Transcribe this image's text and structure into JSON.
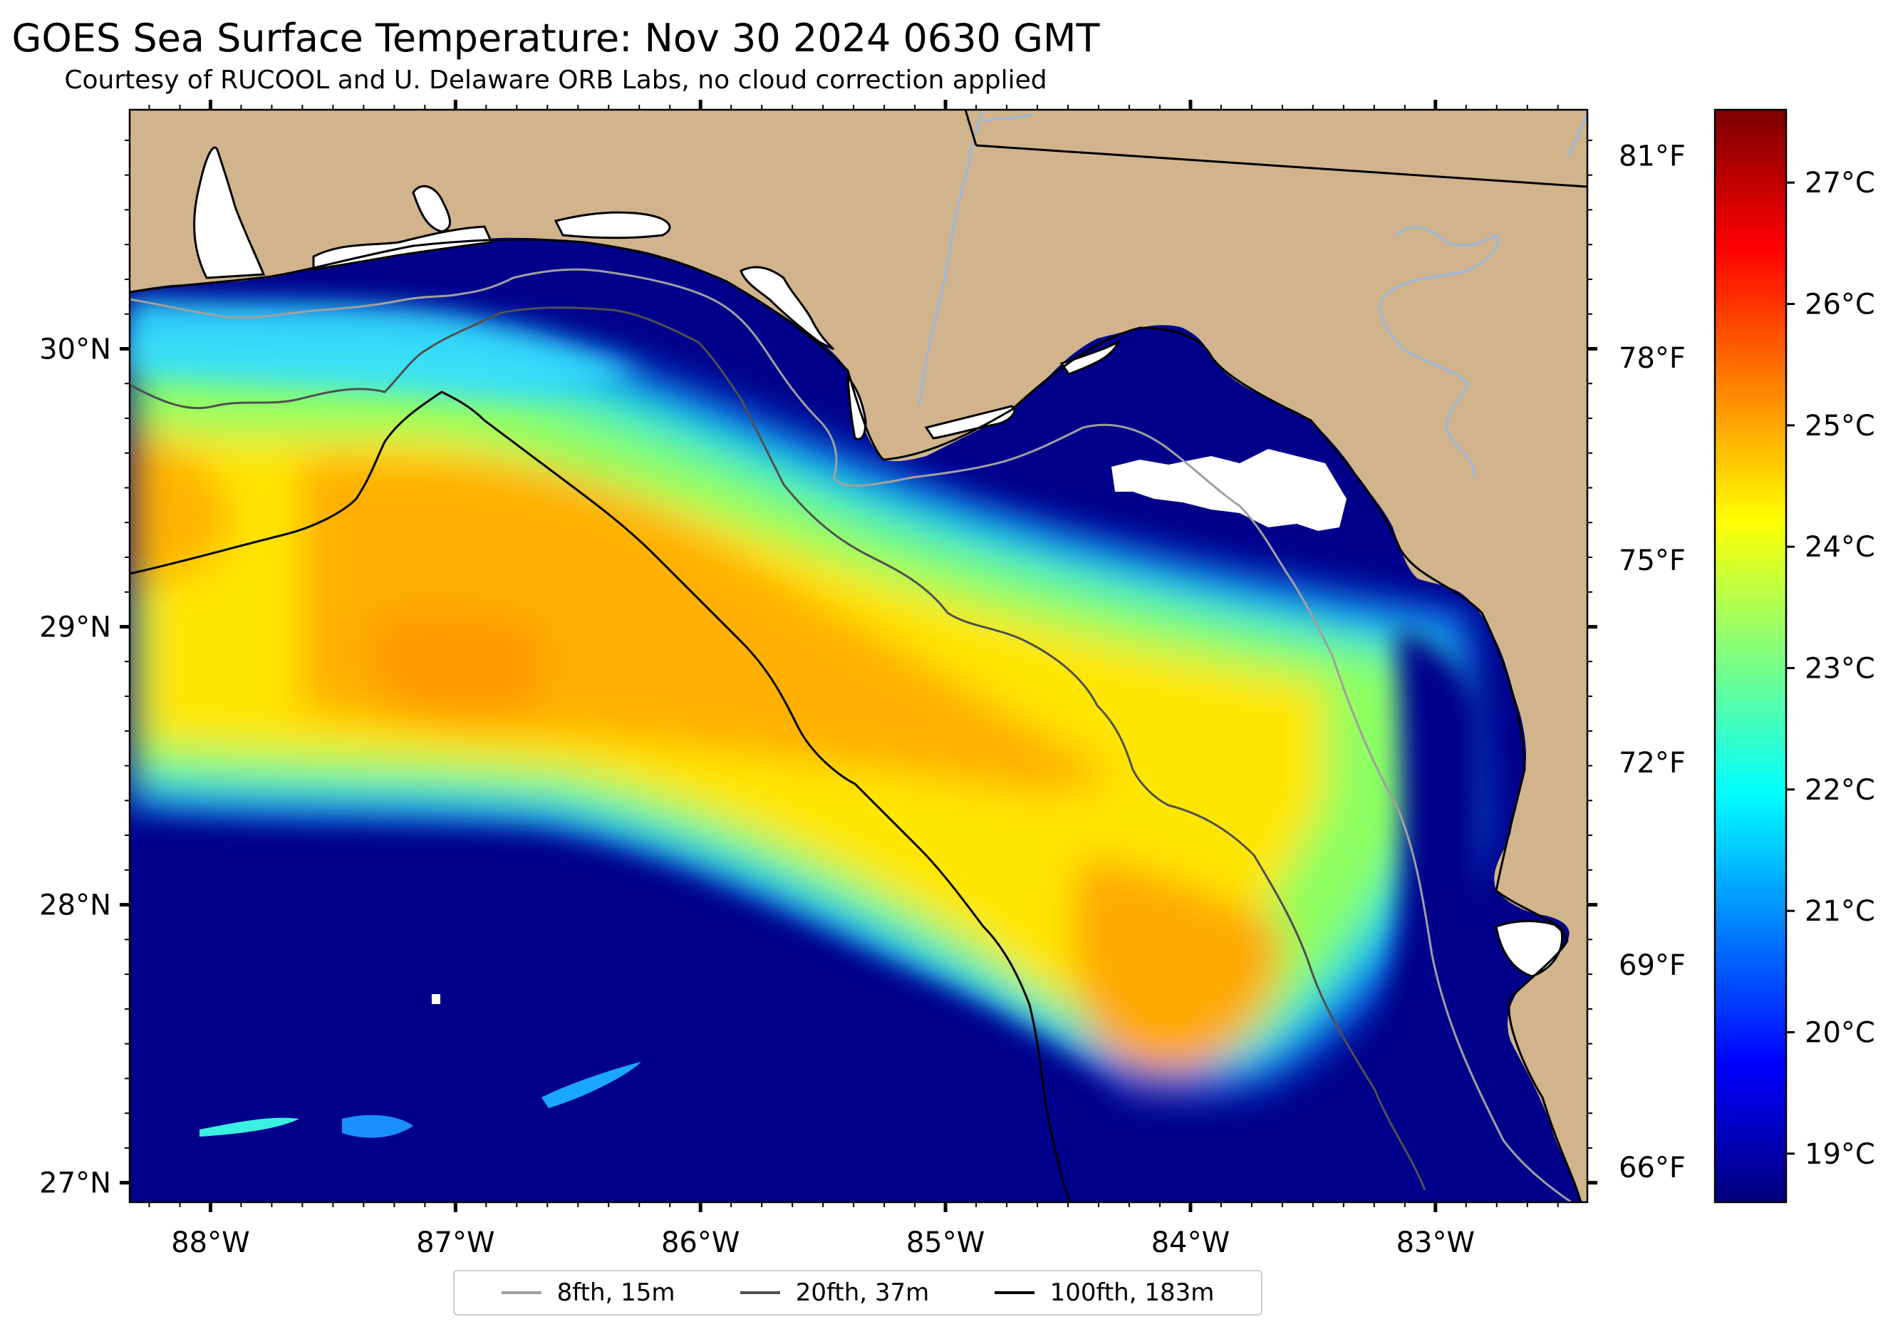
{
  "header": {
    "title": "GOES Sea Surface Temperature: Nov 30 2024 0630 GMT",
    "subtitle": "Courtesy of RUCOOL and U. Delaware ORB Labs, no cloud correction applied"
  },
  "map": {
    "lon_range": [
      -88.33,
      -82.38
    ],
    "lat_range": [
      26.93,
      30.86
    ],
    "lon_ticks": [
      {
        "lon": -88,
        "label": "88°W"
      },
      {
        "lon": -87,
        "label": "87°W"
      },
      {
        "lon": -86,
        "label": "86°W"
      },
      {
        "lon": -85,
        "label": "85°W"
      },
      {
        "lon": -84,
        "label": "84°W"
      },
      {
        "lon": -83,
        "label": "83°W"
      }
    ],
    "lat_ticks": [
      {
        "lat": 30,
        "label": "30°N"
      },
      {
        "lat": 29,
        "label": "29°N"
      },
      {
        "lat": 28,
        "label": "28°N"
      },
      {
        "lat": 27,
        "label": "27°N"
      }
    ],
    "fahrenheit_ticks": [
      {
        "degF": 81,
        "label": "81°F"
      },
      {
        "degF": 78,
        "label": "78°F"
      },
      {
        "degF": 75,
        "label": "75°F"
      },
      {
        "degF": 72,
        "label": "72°F"
      },
      {
        "degF": 69,
        "label": "69°F"
      },
      {
        "degF": 66,
        "label": "66°F"
      }
    ],
    "land_color": "#d2b48c",
    "cold_water_color": "#00008b",
    "cloud_color": "#ffffff"
  },
  "colorbar": {
    "vmin": 18.6,
    "vmax": 27.6,
    "colormap": "jet",
    "ticks": [
      {
        "degC": 19,
        "label": "19°C"
      },
      {
        "degC": 20,
        "label": "20°C"
      },
      {
        "degC": 21,
        "label": "21°C"
      },
      {
        "degC": 22,
        "label": "22°C"
      },
      {
        "degC": 23,
        "label": "23°C"
      },
      {
        "degC": 24,
        "label": "24°C"
      },
      {
        "degC": 25,
        "label": "25°C"
      },
      {
        "degC": 26,
        "label": "26°C"
      },
      {
        "degC": 27,
        "label": "27°C"
      }
    ]
  },
  "legend": {
    "items": [
      {
        "label": "8fth, 15m",
        "color": "#a0a0a0"
      },
      {
        "label": "20fth, 37m",
        "color": "#505050"
      },
      {
        "label": "100fth, 183m",
        "color": "#000000"
      }
    ]
  }
}
